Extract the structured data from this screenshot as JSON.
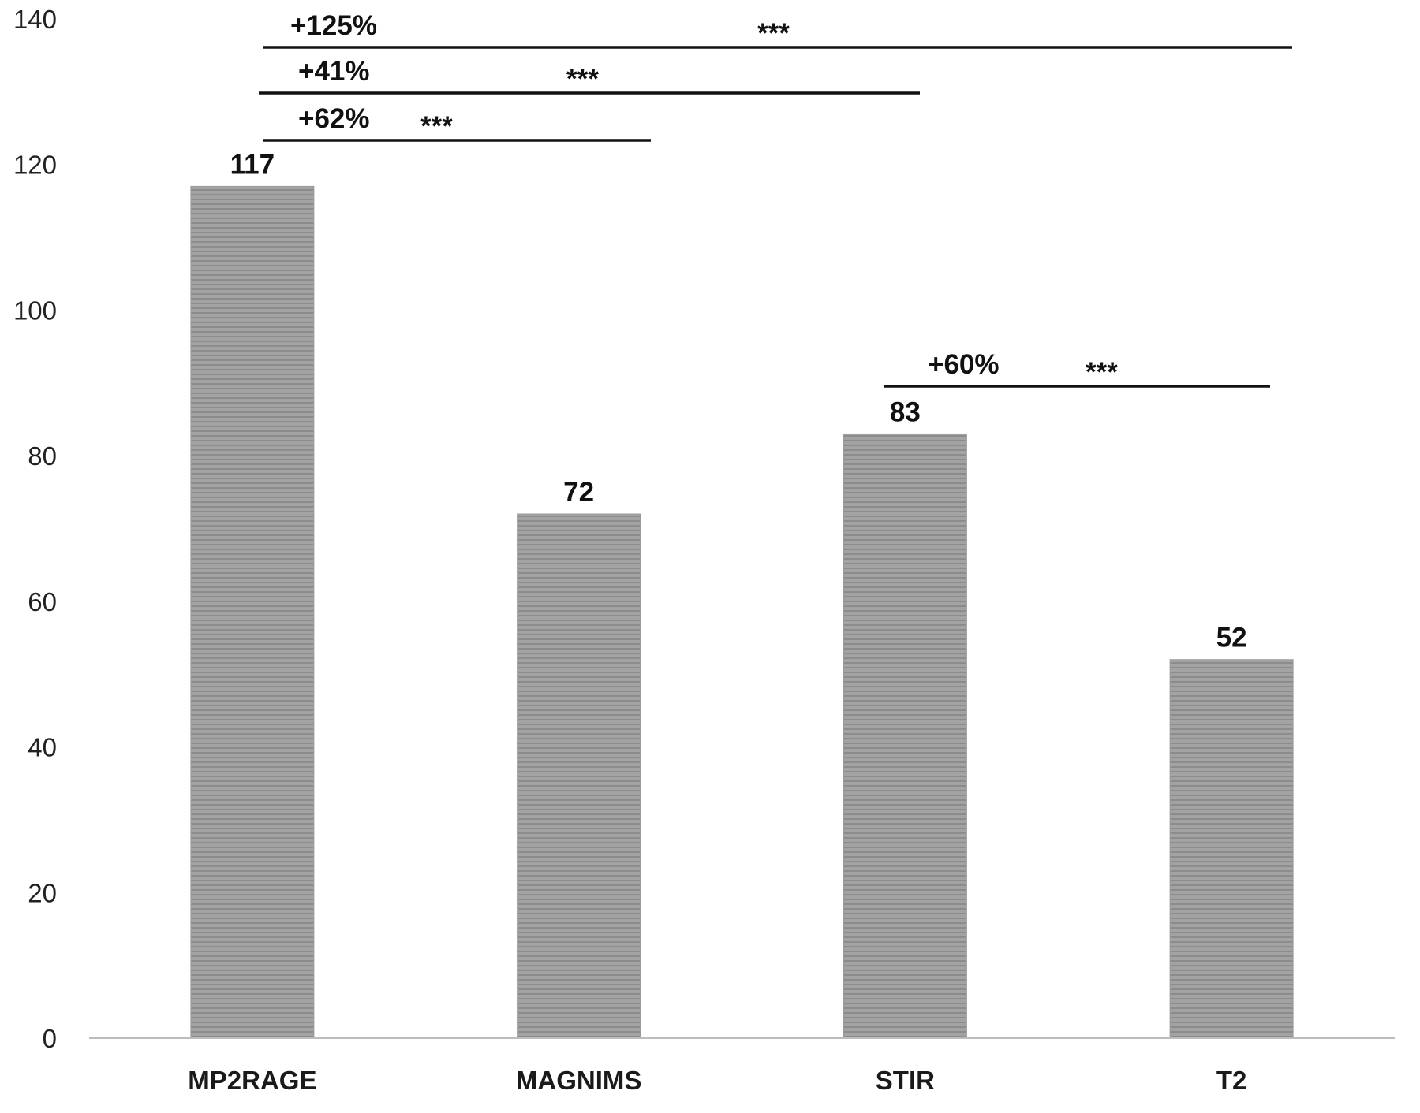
{
  "chart_data": {
    "type": "bar",
    "categories": [
      "MP2RAGE",
      "MAGNIMS",
      "STIR",
      "T2"
    ],
    "values": [
      117,
      72,
      83,
      52
    ],
    "data_labels": [
      "117",
      "72",
      "83",
      "52"
    ],
    "ylim": [
      0,
      140
    ],
    "yticks": [
      0,
      20,
      40,
      60,
      80,
      100,
      120,
      140
    ],
    "ytick_labels": [
      "0",
      "20",
      "40",
      "60",
      "80",
      "100",
      "120",
      "140"
    ],
    "grid": false,
    "legend": "none",
    "bar_color": "#a3a3a3",
    "bar_stripe_color": "#8c8c8c",
    "comparisons": [
      {
        "from": "MP2RAGE",
        "to": "T2",
        "label": "+125%",
        "significance": "***"
      },
      {
        "from": "MP2RAGE",
        "to": "STIR",
        "label": "+41%",
        "significance": "***"
      },
      {
        "from": "MP2RAGE",
        "to": "MAGNIMS",
        "label": "+62%",
        "significance": "***"
      },
      {
        "from": "STIR",
        "to": "T2",
        "label": "+60%",
        "significance": "***"
      }
    ]
  }
}
